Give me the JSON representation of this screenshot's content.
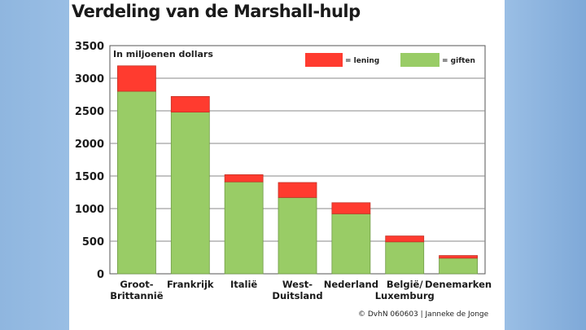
{
  "title": "Verdeling van de Marshall-hulp",
  "credit": "© DvhN 060603 | Janneke de Jonge",
  "colors": {
    "lening": "#ff3b2f",
    "giften": "#99cc66"
  },
  "chart_data": {
    "type": "bar",
    "stacked": true,
    "title": "Verdeling van de Marshall-hulp",
    "unit_label": "In miljoenen dollars",
    "categories": [
      "Groot-Brittannië",
      "Frankrijk",
      "Italië",
      "West-Duitsland",
      "Nederland",
      "België/Luxemburg",
      "Denemarken"
    ],
    "category_lines": [
      [
        "Groot-",
        "Brittannië"
      ],
      [
        "Frankrijk"
      ],
      [
        "Italië"
      ],
      [
        "West-",
        "Duitsland"
      ],
      [
        "Nederland"
      ],
      [
        "België/",
        "Luxemburg"
      ],
      [
        "Denemarken"
      ]
    ],
    "series": [
      {
        "name": "giften",
        "values": [
          2800,
          2480,
          1410,
          1170,
          920,
          490,
          240
        ]
      },
      {
        "name": "lening",
        "values": [
          390,
          240,
          110,
          230,
          170,
          90,
          40
        ]
      }
    ],
    "ylim": [
      0,
      3500
    ],
    "yticks": [
      0,
      500,
      1000,
      1500,
      2000,
      2500,
      3000,
      3500
    ],
    "grid": true,
    "legend": {
      "position": "top-right",
      "items": [
        {
          "series": "lening",
          "label": "= lening"
        },
        {
          "series": "giften",
          "label": "= giften"
        }
      ]
    }
  }
}
